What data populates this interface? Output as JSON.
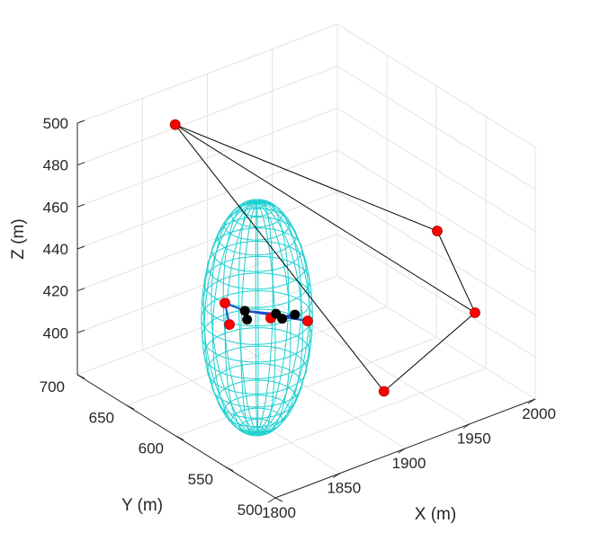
{
  "chart_data": {
    "type": "scatter3d",
    "title": "",
    "xlabel": "X (m)",
    "ylabel": "Y (m)",
    "zlabel": "Z (m)",
    "xlim": [
      1800,
      2000
    ],
    "ylim": [
      500,
      700
    ],
    "zlim": [
      380,
      500
    ],
    "xticks": [
      "1800",
      "1850",
      "1900",
      "1950",
      "2000"
    ],
    "yticks": [
      "500",
      "550",
      "600",
      "650",
      "700"
    ],
    "zticks": [
      "400",
      "420",
      "440",
      "460",
      "480",
      "500"
    ],
    "grid": true,
    "colors": {
      "ellipsoid": "#1fcfcf",
      "anchors": "#ff0000",
      "nodes": "#000000",
      "links": "#1f4fd0",
      "edges": "#000000"
    },
    "anchors": [
      {
        "x": 1860,
        "y": 680,
        "z": 491
      },
      {
        "x": 1955,
        "y": 540,
        "z": 459
      },
      {
        "x": 1965,
        "y": 515,
        "z": 425
      },
      {
        "x": 1895,
        "y": 515,
        "z": 404
      },
      {
        "x": 1845,
        "y": 610,
        "z": 430
      },
      {
        "x": 1865,
        "y": 590,
        "z": 424
      },
      {
        "x": 1882,
        "y": 575,
        "z": 423
      },
      {
        "x": 1850,
        "y": 612,
        "z": 418
      }
    ],
    "nodes": [
      {
        "x": 1855,
        "y": 603,
        "z": 426
      },
      {
        "x": 1866,
        "y": 586,
        "z": 427
      },
      {
        "x": 1870,
        "y": 585,
        "z": 424
      },
      {
        "x": 1876,
        "y": 580,
        "z": 426
      },
      {
        "x": 1859,
        "y": 606,
        "z": 420
      }
    ],
    "ellipsoid": {
      "center": {
        "x": 1862,
        "y": 600,
        "z": 422
      },
      "radii": {
        "x": 34,
        "y": 34,
        "z": 55
      }
    },
    "edges": [
      [
        0,
        1
      ],
      [
        1,
        2
      ],
      [
        2,
        3
      ],
      [
        3,
        0
      ],
      [
        0,
        2
      ]
    ],
    "links": [
      [
        4,
        0
      ],
      [
        0,
        1
      ],
      [
        1,
        2
      ],
      [
        2,
        3
      ],
      [
        3,
        5
      ],
      [
        0,
        6
      ],
      [
        4,
        7
      ]
    ]
  }
}
